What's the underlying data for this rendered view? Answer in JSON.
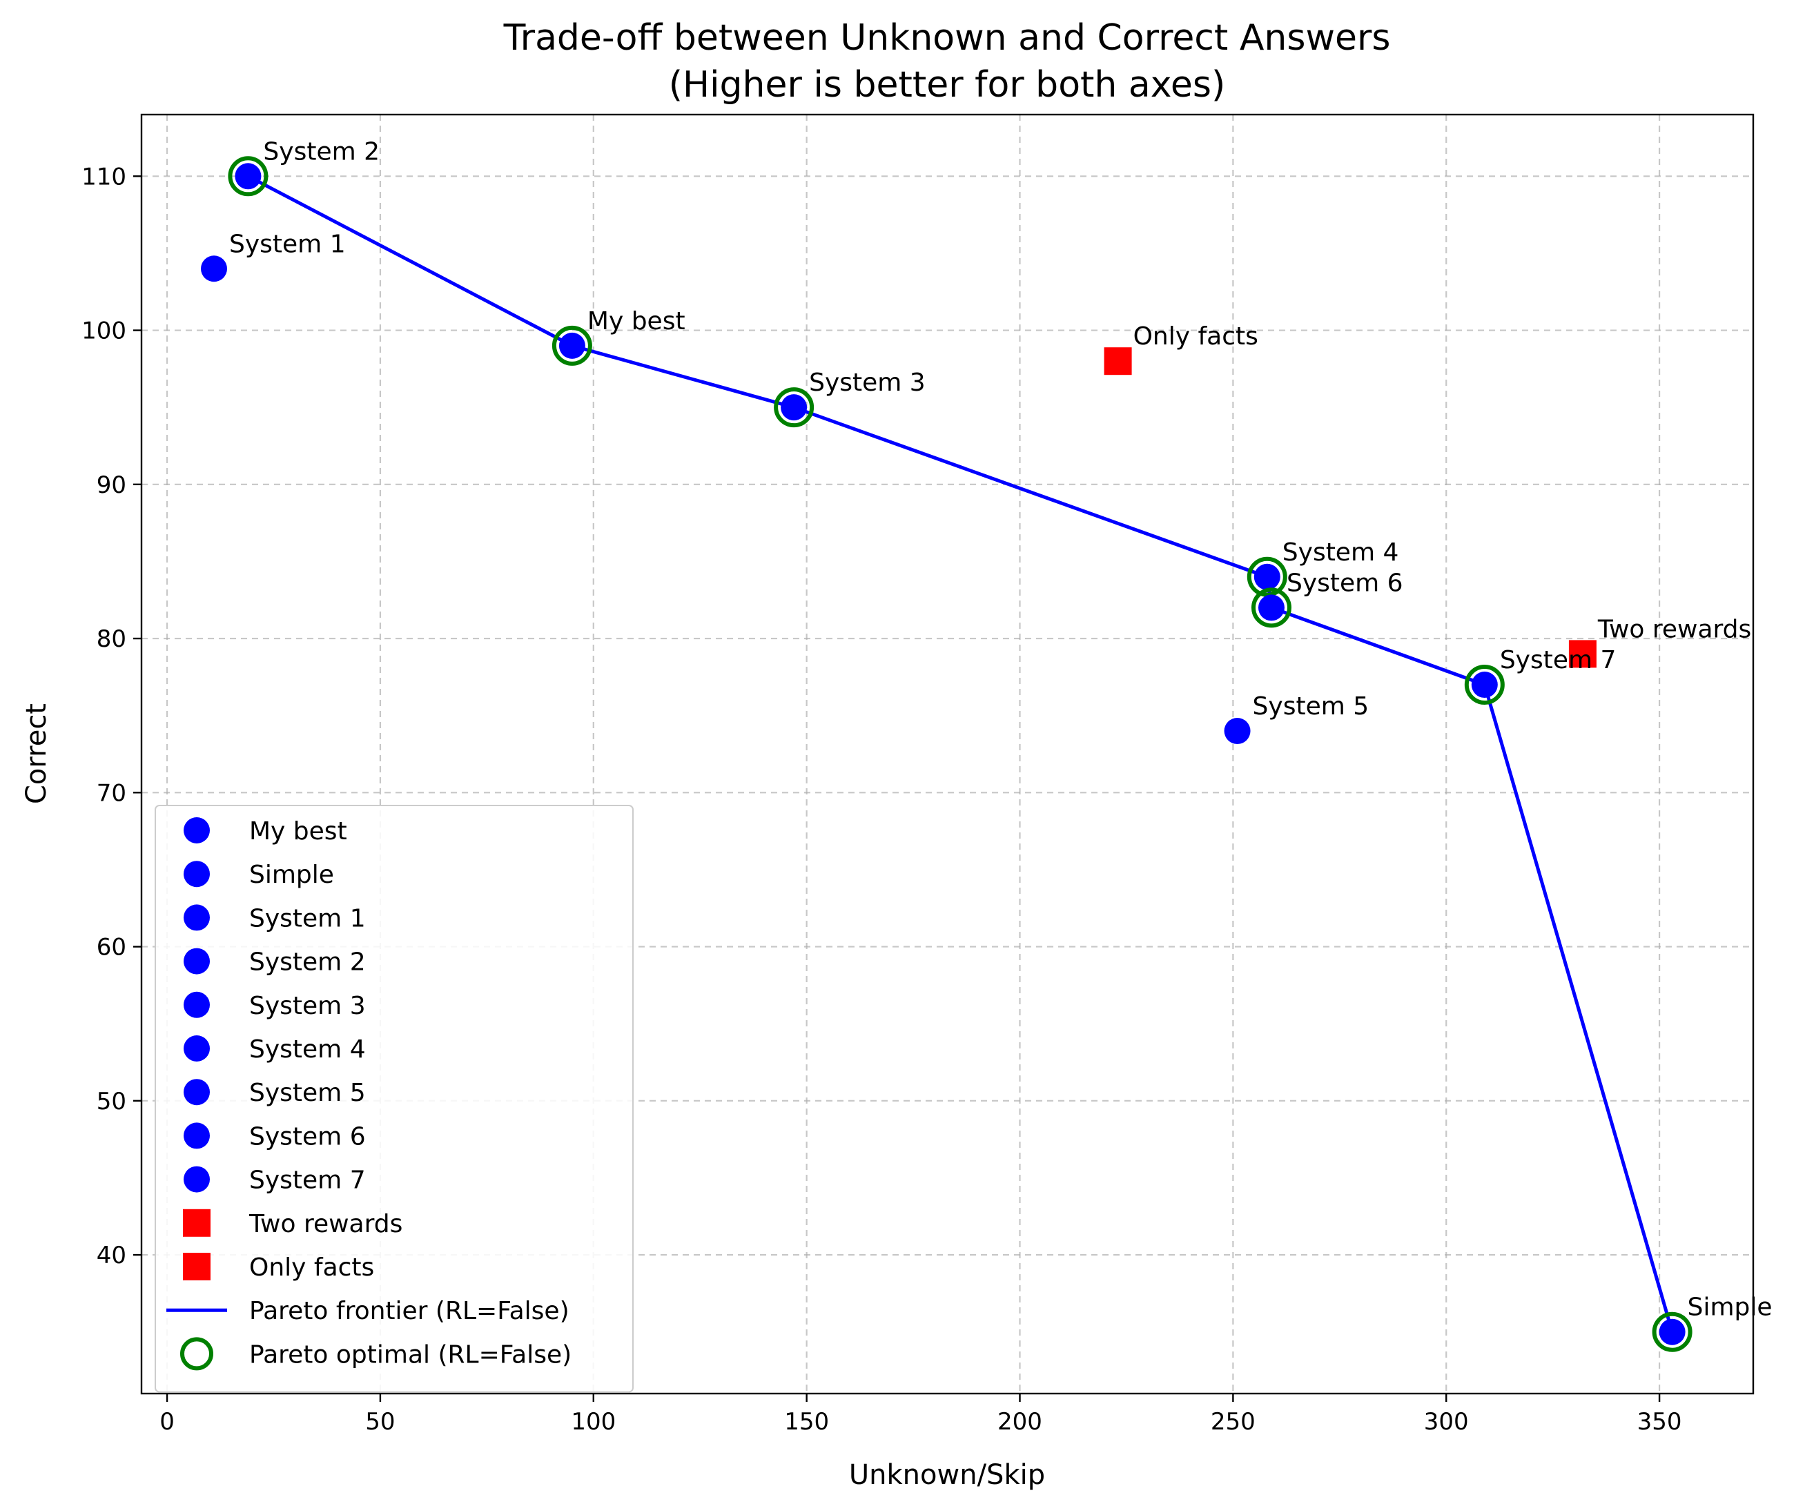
{
  "chart_data": {
    "type": "scatter",
    "title": [
      "Trade-off between Unknown and Correct Answers",
      "(Higher is better for both axes)"
    ],
    "xlabel": "Unknown/Skip",
    "ylabel": "Correct",
    "xlim": [
      -6,
      372
    ],
    "ylim": [
      31,
      114
    ],
    "xticks": [
      0,
      50,
      100,
      150,
      200,
      250,
      300,
      350
    ],
    "yticks": [
      40,
      50,
      60,
      70,
      80,
      90,
      100,
      110
    ],
    "grid": true,
    "legend_position": "lower-left",
    "colors": {
      "rl_false": "#0000ff",
      "rl_true": "#ff0000",
      "pareto_line": "#0000ff",
      "pareto_ring": "#008000"
    },
    "points": [
      {
        "name": "My best",
        "x": 95,
        "y": 99,
        "marker": "circle",
        "color": "#0000ff",
        "pareto": true
      },
      {
        "name": "Simple",
        "x": 353,
        "y": 35,
        "marker": "circle",
        "color": "#0000ff",
        "pareto": true
      },
      {
        "name": "System 1",
        "x": 11,
        "y": 104,
        "marker": "circle",
        "color": "#0000ff",
        "pareto": false
      },
      {
        "name": "System 2",
        "x": 19,
        "y": 110,
        "marker": "circle",
        "color": "#0000ff",
        "pareto": true
      },
      {
        "name": "System 3",
        "x": 147,
        "y": 95,
        "marker": "circle",
        "color": "#0000ff",
        "pareto": true
      },
      {
        "name": "System 4",
        "x": 258,
        "y": 84,
        "marker": "circle",
        "color": "#0000ff",
        "pareto": true
      },
      {
        "name": "System 5",
        "x": 251,
        "y": 74,
        "marker": "circle",
        "color": "#0000ff",
        "pareto": false
      },
      {
        "name": "System 6",
        "x": 259,
        "y": 82,
        "marker": "circle",
        "color": "#0000ff",
        "pareto": true
      },
      {
        "name": "System 7",
        "x": 309,
        "y": 77,
        "marker": "circle",
        "color": "#0000ff",
        "pareto": true
      },
      {
        "name": "Two rewards",
        "x": 332,
        "y": 79,
        "marker": "square",
        "color": "#ff0000",
        "pareto": false
      },
      {
        "name": "Only facts",
        "x": 223,
        "y": 98,
        "marker": "square",
        "color": "#ff0000",
        "pareto": false
      }
    ],
    "pareto_frontier": {
      "name": "Pareto frontier (RL=False)",
      "points": [
        [
          19,
          110
        ],
        [
          95,
          99
        ],
        [
          147,
          95
        ],
        [
          258,
          84
        ],
        [
          259,
          82
        ],
        [
          309,
          77
        ],
        [
          353,
          35
        ]
      ]
    },
    "legend": [
      {
        "label": "My best",
        "marker": "circle",
        "color": "#0000ff"
      },
      {
        "label": "Simple",
        "marker": "circle",
        "color": "#0000ff"
      },
      {
        "label": "System 1",
        "marker": "circle",
        "color": "#0000ff"
      },
      {
        "label": "System 2",
        "marker": "circle",
        "color": "#0000ff"
      },
      {
        "label": "System 3",
        "marker": "circle",
        "color": "#0000ff"
      },
      {
        "label": "System 4",
        "marker": "circle",
        "color": "#0000ff"
      },
      {
        "label": "System 5",
        "marker": "circle",
        "color": "#0000ff"
      },
      {
        "label": "System 6",
        "marker": "circle",
        "color": "#0000ff"
      },
      {
        "label": "System 7",
        "marker": "circle",
        "color": "#0000ff"
      },
      {
        "label": "Two rewards",
        "marker": "square",
        "color": "#ff0000"
      },
      {
        "label": "Only facts",
        "marker": "square",
        "color": "#ff0000"
      },
      {
        "label": "Pareto frontier (RL=False)",
        "marker": "line",
        "color": "#0000ff"
      },
      {
        "label": "Pareto optimal (RL=False)",
        "marker": "ring",
        "color": "#008000"
      }
    ]
  }
}
